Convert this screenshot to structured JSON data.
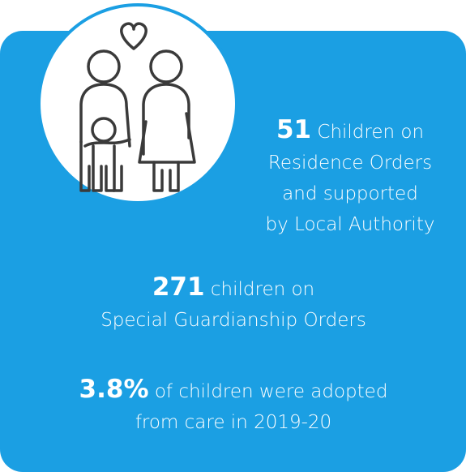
{
  "stats": [
    {
      "figure": "51",
      "lines": [
        "Children on",
        "Residence Orders",
        "and supported",
        "by Local Authority"
      ]
    },
    {
      "figure": "271",
      "lines": [
        "children on",
        "Special Guardianship Orders"
      ]
    },
    {
      "figure": "3.8%",
      "lines": [
        "of children were adopted",
        "from care in 2019-20"
      ]
    }
  ]
}
